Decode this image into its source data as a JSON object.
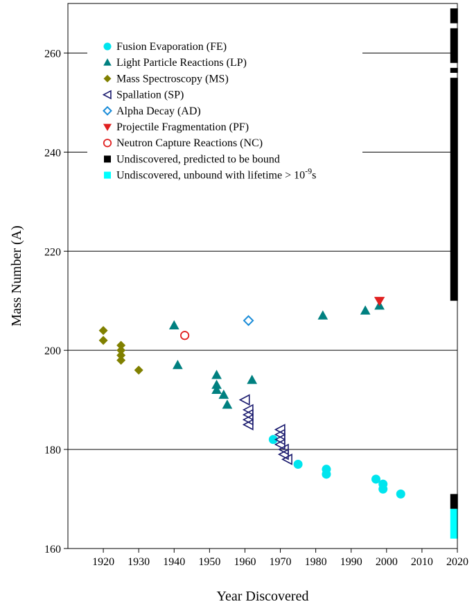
{
  "chart_data": {
    "type": "scatter",
    "xlabel": "Year Discovered",
    "ylabel": "Mass Number (A)",
    "xlim": [
      1910,
      2020
    ],
    "ylim": [
      160,
      270
    ],
    "x_ticks": [
      1920,
      1930,
      1940,
      1950,
      1960,
      1970,
      1980,
      1990,
      2000,
      2010,
      2020
    ],
    "y_ticks": [
      160,
      180,
      200,
      220,
      240,
      260
    ],
    "grid": "horizontal major lines at 180, 200, 220, 240, 260",
    "legend_position": "top-left",
    "series": [
      {
        "name": "Fusion Evaporation (FE)",
        "marker": "circle-filled",
        "color": "#00e5ee",
        "points": [
          [
            1968,
            182
          ],
          [
            1975,
            177
          ],
          [
            1983,
            176
          ],
          [
            1983,
            175
          ],
          [
            1997,
            174
          ],
          [
            1999,
            173
          ],
          [
            1999,
            172
          ],
          [
            2004,
            171
          ]
        ]
      },
      {
        "name": "Light Particle Reactions (LP)",
        "marker": "triangle-up-filled",
        "color": "#008080",
        "points": [
          [
            1940,
            205
          ],
          [
            1941,
            197
          ],
          [
            1952,
            195
          ],
          [
            1952,
            193
          ],
          [
            1952,
            192
          ],
          [
            1954,
            191
          ],
          [
            1955,
            189
          ],
          [
            1962,
            194
          ],
          [
            1982,
            207
          ],
          [
            1994,
            208
          ],
          [
            1998,
            209
          ]
        ]
      },
      {
        "name": "Mass Spectroscopy (MS)",
        "marker": "diamond-filled",
        "color": "#808000",
        "points": [
          [
            1920,
            204
          ],
          [
            1920,
            202
          ],
          [
            1925,
            201
          ],
          [
            1925,
            200
          ],
          [
            1925,
            199
          ],
          [
            1925,
            198
          ],
          [
            1930,
            196
          ]
        ]
      },
      {
        "name": "Spallation (SP)",
        "marker": "triangle-left-open",
        "color": "#1a1a6e",
        "points": [
          [
            1960,
            190
          ],
          [
            1961,
            188
          ],
          [
            1961,
            187
          ],
          [
            1961,
            186
          ],
          [
            1961,
            185
          ],
          [
            1970,
            184
          ],
          [
            1970,
            183
          ],
          [
            1970,
            182
          ],
          [
            1970,
            181
          ],
          [
            1971,
            180
          ],
          [
            1971,
            179
          ],
          [
            1972,
            178
          ]
        ]
      },
      {
        "name": "Alpha Decay (AD)",
        "marker": "diamond-open",
        "color": "#1a8cd8",
        "points": [
          [
            1961,
            206
          ]
        ]
      },
      {
        "name": "Projectile Fragmentation (PF)",
        "marker": "triangle-down-filled",
        "color": "#e02020",
        "points": [
          [
            1998,
            210
          ]
        ]
      },
      {
        "name": "Neutron Capture Reactions (NC)",
        "marker": "circle-open",
        "color": "#e02020",
        "points": [
          [
            1943,
            203
          ]
        ]
      }
    ],
    "bars": [
      {
        "name": "Undiscovered, predicted to be bound",
        "color": "#000000",
        "ranges": [
          [
            210,
            255
          ],
          [
            256,
            257
          ],
          [
            258,
            265
          ],
          [
            266,
            269
          ],
          [
            168,
            171
          ]
        ]
      },
      {
        "name": "Undiscovered, unbound with lifetime > 10^-9s",
        "color": "#00ffff",
        "ranges": [
          [
            162,
            168
          ]
        ]
      }
    ],
    "legend": [
      {
        "label": "Fusion Evaporation (FE)",
        "marker": "circle-filled",
        "color": "#00e5ee"
      },
      {
        "label": "Light Particle Reactions (LP)",
        "marker": "triangle-up-filled",
        "color": "#008080"
      },
      {
        "label": "Mass Spectroscopy (MS)",
        "marker": "diamond-filled",
        "color": "#808000"
      },
      {
        "label": "Spallation (SP)",
        "marker": "triangle-left-open",
        "color": "#1a1a6e"
      },
      {
        "label": "Alpha Decay (AD)",
        "marker": "diamond-open",
        "color": "#1a8cd8"
      },
      {
        "label": "Projectile Fragmentation (PF)",
        "marker": "triangle-down-filled",
        "color": "#e02020"
      },
      {
        "label": "Neutron Capture Reactions (NC)",
        "marker": "circle-open",
        "color": "#e02020"
      },
      {
        "label": "Undiscovered, predicted to be bound",
        "marker": "square-filled",
        "color": "#000000"
      },
      {
        "label": "Undiscovered, unbound with lifetime > 10",
        "sup": "-9",
        "suffix": "s",
        "marker": "square-filled",
        "color": "#00ffff"
      }
    ]
  }
}
